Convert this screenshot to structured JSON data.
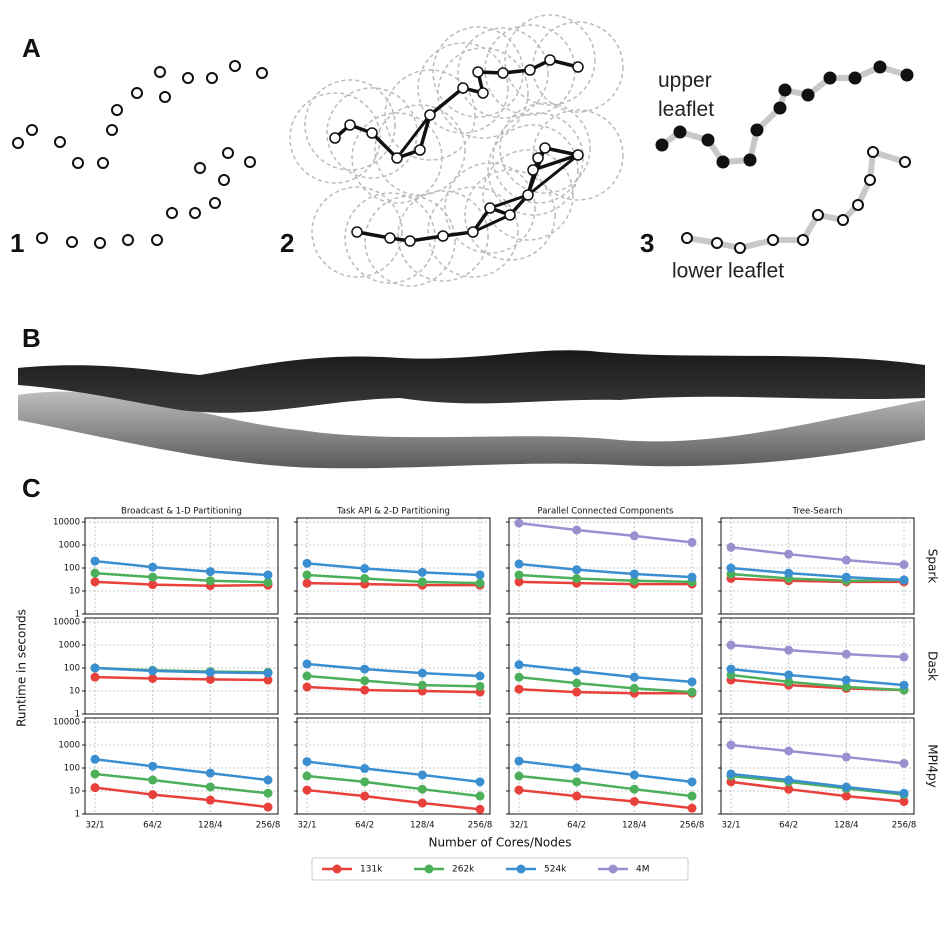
{
  "figure": {
    "panel_labels": [
      "A",
      "B",
      "C"
    ],
    "step_labels": [
      "1",
      "2",
      "3"
    ],
    "upper_label": "upper leaflet",
    "lower_label": "lower leaflet"
  },
  "chart_data": {
    "type": "line",
    "column_titles": [
      "Broadcast & 1-D Partitioning",
      "Task API & 2-D Partitioning",
      "Parallel Connected Components",
      "Tree-Search"
    ],
    "row_labels": [
      "Spark",
      "Dask",
      "MPI4py"
    ],
    "xlabel": "Number of Cores/Nodes",
    "ylabel": "Runtime in seconds",
    "categories": [
      "32/1",
      "64/2",
      "128/4",
      "256/8"
    ],
    "log_scale": true,
    "ylim": [
      1,
      15000
    ],
    "yticks": [
      1,
      10,
      100,
      1000,
      10000
    ],
    "grid": true,
    "legend_position": "bottom",
    "series": [
      {
        "name": "131k",
        "color": "#e8413c"
      },
      {
        "name": "262k",
        "color": "#4cb05a"
      },
      {
        "name": "524k",
        "color": "#3b8fd0"
      },
      {
        "name": "4M",
        "color": "#9b8fd0"
      }
    ],
    "panels": [
      [
        [
          [
            25,
            19,
            17,
            18
          ],
          [
            60,
            40,
            28,
            24
          ],
          [
            200,
            110,
            70,
            50
          ]
        ],
        [
          [
            22,
            20,
            18,
            18
          ],
          [
            50,
            35,
            25,
            22
          ],
          [
            160,
            95,
            65,
            50
          ]
        ],
        [
          [
            25,
            22,
            20,
            20
          ],
          [
            50,
            35,
            28,
            25
          ],
          [
            150,
            85,
            55,
            40
          ],
          [
            9000,
            4500,
            2500,
            1300
          ]
        ],
        [
          [
            35,
            28,
            25,
            25
          ],
          [
            55,
            35,
            28,
            30
          ],
          [
            100,
            60,
            40,
            30
          ],
          [
            800,
            400,
            220,
            140
          ]
        ]
      ],
      [
        [
          [
            40,
            35,
            32,
            30
          ],
          [
            100,
            80,
            70,
            65
          ],
          [
            100,
            75,
            65,
            60
          ]
        ],
        [
          [
            15,
            11,
            10,
            9
          ],
          [
            45,
            28,
            18,
            16
          ],
          [
            150,
            90,
            60,
            45
          ]
        ],
        [
          [
            12,
            9,
            8,
            8
          ],
          [
            40,
            22,
            13,
            9
          ],
          [
            140,
            75,
            40,
            25
          ]
        ],
        [
          [
            30,
            18,
            13,
            11
          ],
          [
            50,
            25,
            15,
            11
          ],
          [
            90,
            50,
            30,
            18
          ],
          [
            1000,
            600,
            400,
            300
          ]
        ]
      ],
      [
        [
          [
            14,
            7,
            4,
            2
          ],
          [
            55,
            30,
            15,
            8
          ],
          [
            240,
            120,
            60,
            30
          ]
        ],
        [
          [
            11,
            6,
            3,
            1.6
          ],
          [
            45,
            25,
            12,
            6
          ],
          [
            190,
            95,
            50,
            25
          ]
        ],
        [
          [
            11,
            6,
            3.5,
            1.8
          ],
          [
            45,
            25,
            12,
            6
          ],
          [
            200,
            100,
            50,
            25
          ]
        ],
        [
          [
            25,
            12,
            6,
            3.5
          ],
          [
            45,
            25,
            13,
            7
          ],
          [
            55,
            30,
            15,
            8
          ],
          [
            1000,
            550,
            300,
            160
          ]
        ]
      ]
    ]
  }
}
